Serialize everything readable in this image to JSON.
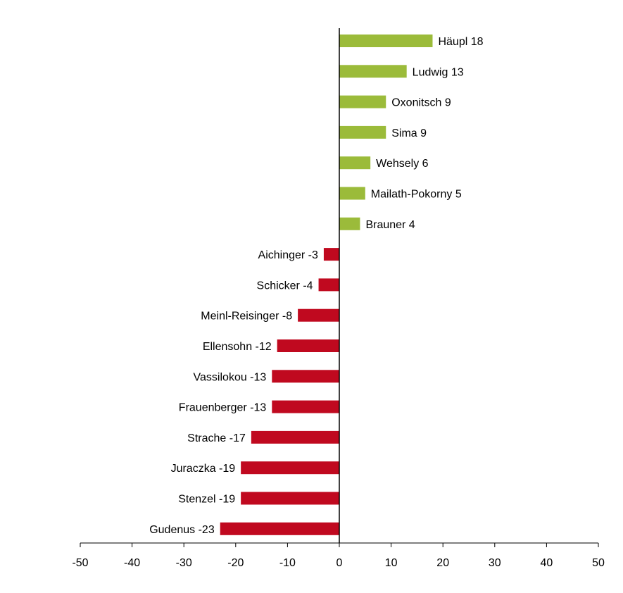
{
  "chart_data": {
    "type": "bar",
    "orientation": "horizontal",
    "title": "",
    "xlabel": "",
    "ylabel": "",
    "xlim": [
      -50,
      50
    ],
    "xticks": [
      -50,
      -40,
      -30,
      -20,
      -10,
      0,
      10,
      20,
      30,
      40,
      50
    ],
    "grid": false,
    "legend": "none",
    "colors": {
      "positive": "#9bbb3a",
      "negative": "#c0091f",
      "axis": "#000000"
    },
    "bars": [
      {
        "name": "Häupl",
        "value": 18,
        "label": "Häupl 18"
      },
      {
        "name": "Ludwig",
        "value": 13,
        "label": "Ludwig 13"
      },
      {
        "name": "Oxonitsch",
        "value": 9,
        "label": "Oxonitsch 9"
      },
      {
        "name": "Sima",
        "value": 9,
        "label": "Sima 9"
      },
      {
        "name": "Wehsely",
        "value": 6,
        "label": "Wehsely 6"
      },
      {
        "name": "Mailath-Pokorny",
        "value": 5,
        "label": "Mailath-Pokorny 5"
      },
      {
        "name": "Brauner",
        "value": 4,
        "label": "Brauner 4"
      },
      {
        "name": "Aichinger",
        "value": -3,
        "label": "Aichinger -3"
      },
      {
        "name": "Schicker",
        "value": -4,
        "label": "Schicker -4"
      },
      {
        "name": "Meinl-Reisinger",
        "value": -8,
        "label": "Meinl-Reisinger -8"
      },
      {
        "name": "Ellensohn",
        "value": -12,
        "label": "Ellensohn -12"
      },
      {
        "name": "Vassilokou",
        "value": -13,
        "label": "Vassilokou -13"
      },
      {
        "name": "Frauenberger",
        "value": -13,
        "label": "Frauenberger -13"
      },
      {
        "name": "Strache",
        "value": -17,
        "label": "Strache -17"
      },
      {
        "name": "Juraczka",
        "value": -19,
        "label": "Juraczka -19"
      },
      {
        "name": "Stenzel",
        "value": -19,
        "label": "Stenzel -19"
      },
      {
        "name": "Gudenus",
        "value": -23,
        "label": "Gudenus -23"
      }
    ]
  }
}
